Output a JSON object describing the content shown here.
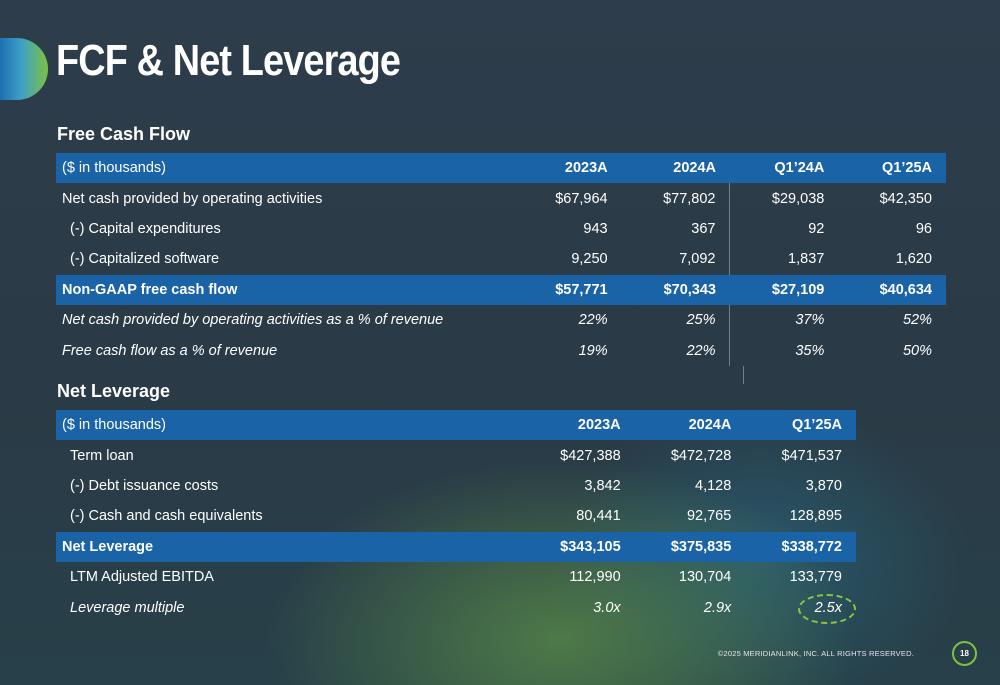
{
  "title": "FCF & Net Leverage",
  "fcf": {
    "section_title": "Free Cash Flow",
    "header": [
      "($ in thousands)",
      "2023A",
      "2024A",
      "Q1’24A",
      "Q1’25A"
    ],
    "rows": [
      {
        "label": "Net cash provided by operating activities",
        "values": [
          "$67,964",
          "$77,802",
          "$29,038",
          "$42,350"
        ]
      },
      {
        "label": "(-) Capital expenditures",
        "values": [
          "943",
          "367",
          "92",
          "96"
        ]
      },
      {
        "label": "(-) Capitalized software",
        "values": [
          "9,250",
          "7,092",
          "1,837",
          "1,620"
        ]
      },
      {
        "label": "Non-GAAP free cash flow",
        "values": [
          "$57,771",
          "$70,343",
          "$27,109",
          "$40,634"
        ]
      },
      {
        "label": "Net cash provided by operating activities as a % of revenue",
        "values": [
          "22%",
          "25%",
          "37%",
          "52%"
        ]
      },
      {
        "label": "Free cash flow as a % of revenue",
        "values": [
          "19%",
          "22%",
          "35%",
          "50%"
        ]
      }
    ]
  },
  "net_leverage": {
    "section_title": "Net Leverage",
    "header": [
      "($ in thousands)",
      "2023A",
      "2024A",
      "Q1’25A"
    ],
    "rows": [
      {
        "label": "Term loan",
        "values": [
          "$427,388",
          "$472,728",
          "$471,537"
        ]
      },
      {
        "label": "(-) Debt issuance costs",
        "values": [
          "3,842",
          "4,128",
          "3,870"
        ]
      },
      {
        "label": "(-) Cash and cash equivalents",
        "values": [
          "80,441",
          "92,765",
          "128,895"
        ]
      },
      {
        "label": "Net Leverage",
        "values": [
          "$343,105",
          "$375,835",
          "$338,772"
        ]
      },
      {
        "label": "LTM Adjusted EBITDA",
        "values": [
          "112,990",
          "130,704",
          "133,779"
        ]
      },
      {
        "label": "Leverage multiple",
        "values": [
          "3.0x",
          "2.9x",
          "2.5x"
        ]
      }
    ]
  },
  "footer": {
    "copyright": "©2025 MERIDIANLINK, INC. ALL RIGHTS RESERVED.",
    "page_number": "18"
  },
  "colors": {
    "header_row": "#1b63a7",
    "accent_green": "#7cc242",
    "background": "#2e3d4b"
  }
}
